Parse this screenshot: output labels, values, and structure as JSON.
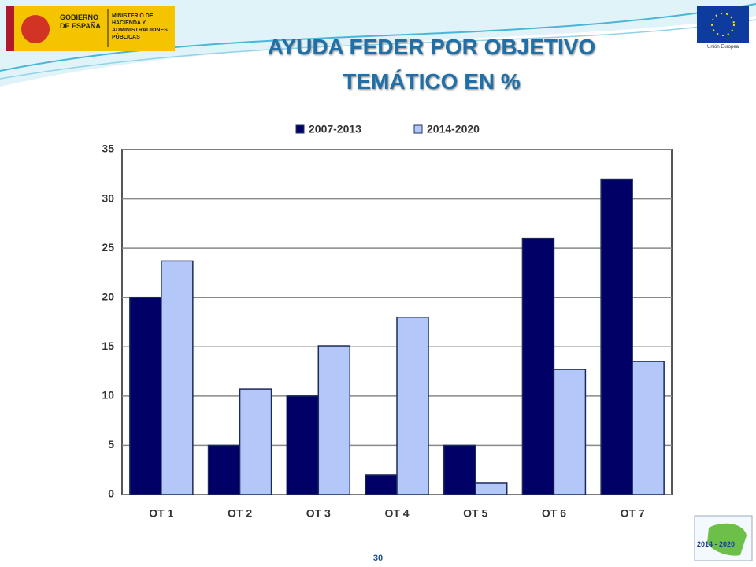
{
  "logos": {
    "gobierno": "GOBIERNO DE ESPAÑA",
    "ministerio": "MINISTERIO DE HACIENDA Y ADMINISTRACIONES PÚBLICAS",
    "eu": "Unión Europea",
    "period": "2014 - 2020"
  },
  "page_number": "30",
  "chart_data": {
    "type": "bar",
    "title": "AYUDA FEDER POR OBJETIVO TEMÁTICO EN %",
    "categories": [
      "OT 1",
      "OT 2",
      "OT 3",
      "OT 4",
      "OT 5",
      "OT 6",
      "OT 7"
    ],
    "series": [
      {
        "name": "2007-2013",
        "color": "#000066",
        "values": [
          20,
          5,
          10,
          2,
          5,
          26,
          32
        ]
      },
      {
        "name": "2014-2020",
        "color": "#b3c8f8",
        "values": [
          23.7,
          10.7,
          15.1,
          18,
          1.2,
          12.7,
          13.5
        ]
      }
    ],
    "ylim": [
      0,
      35
    ],
    "yticks": [
      0,
      5,
      10,
      15,
      20,
      25,
      30,
      35
    ],
    "grid": true,
    "legend": "top"
  }
}
